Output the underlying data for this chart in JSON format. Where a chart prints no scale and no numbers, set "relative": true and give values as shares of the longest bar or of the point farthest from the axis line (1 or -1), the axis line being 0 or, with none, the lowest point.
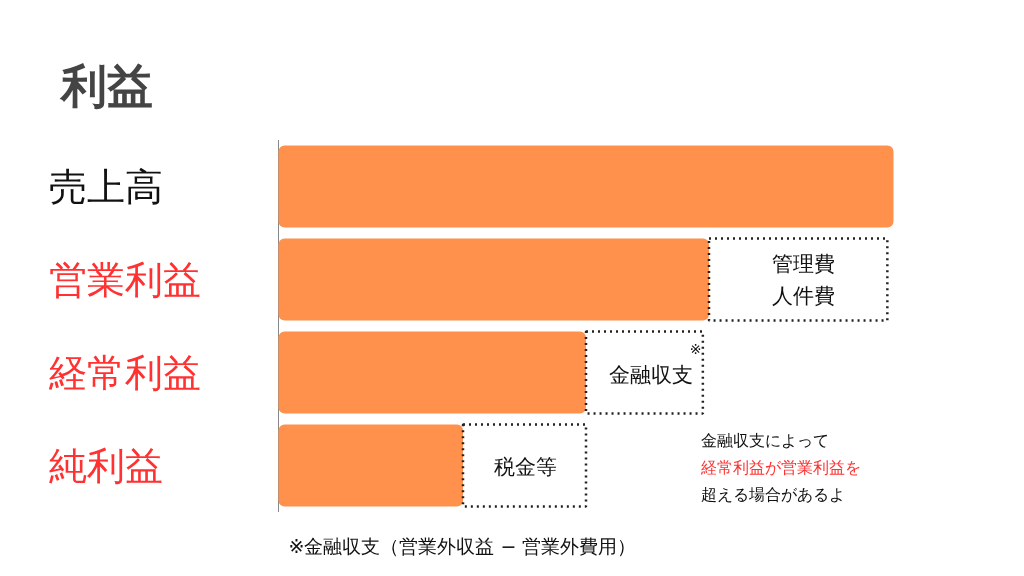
{
  "chart_data": {
    "type": "bar",
    "orientation": "horizontal",
    "stacked": true,
    "relative": true,
    "title": "利益",
    "categories": [
      "売上高",
      "営業利益",
      "経常利益",
      "純利益"
    ],
    "series": [
      {
        "color": "#ff914d",
        "values": [
          1,
          0.7,
          0.5,
          0.3
        ]
      },
      {
        "color": "#222222",
        "line_style": "dotted",
        "values": [
          null,
          0.29,
          0.19,
          0.2
        ]
      }
    ],
    "annotations": [
      "管理費",
      "人件費",
      "※",
      "金融収支",
      "税金等",
      "金融収支によって",
      "経常利益が営業利益を",
      "超える場合があるよ",
      "※金融収支（営業外収益 − 営業外費用）"
    ],
    "grid": false
  }
}
